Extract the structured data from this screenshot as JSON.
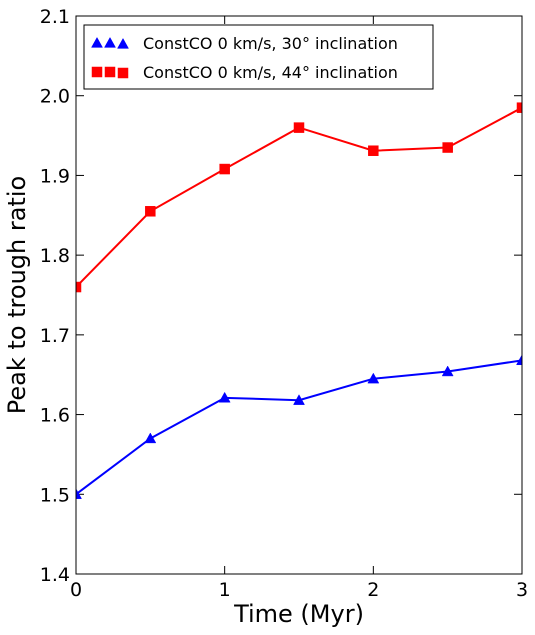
{
  "chart_data": {
    "type": "line",
    "title": "",
    "xlabel": "Time (Myr)",
    "ylabel": "Peak to trough ratio",
    "xlim": [
      0,
      3
    ],
    "ylim": [
      1.4,
      2.1
    ],
    "xticks": [
      "0",
      "1",
      "2",
      "3"
    ],
    "yticks": [
      "1.4",
      "1.5",
      "1.6",
      "1.7",
      "1.8",
      "1.9",
      "2.0",
      "2.1"
    ],
    "grid": false,
    "legend_position": "top-left",
    "series": [
      {
        "name": "ConstCO 0 km/s, 30° inclination",
        "color": "#0000ff",
        "marker": "triangle",
        "x": [
          0,
          0.5,
          1,
          1.5,
          2,
          2.5,
          3
        ],
        "y": [
          1.5,
          1.57,
          1.621,
          1.618,
          1.645,
          1.654,
          1.668
        ]
      },
      {
        "name": "ConstCO 0 km/s, 44° inclination",
        "color": "#ff0000",
        "marker": "square",
        "x": [
          0,
          0.5,
          1,
          1.5,
          2,
          2.5,
          3
        ],
        "y": [
          1.76,
          1.855,
          1.908,
          1.96,
          1.931,
          1.935,
          1.985
        ]
      }
    ]
  }
}
